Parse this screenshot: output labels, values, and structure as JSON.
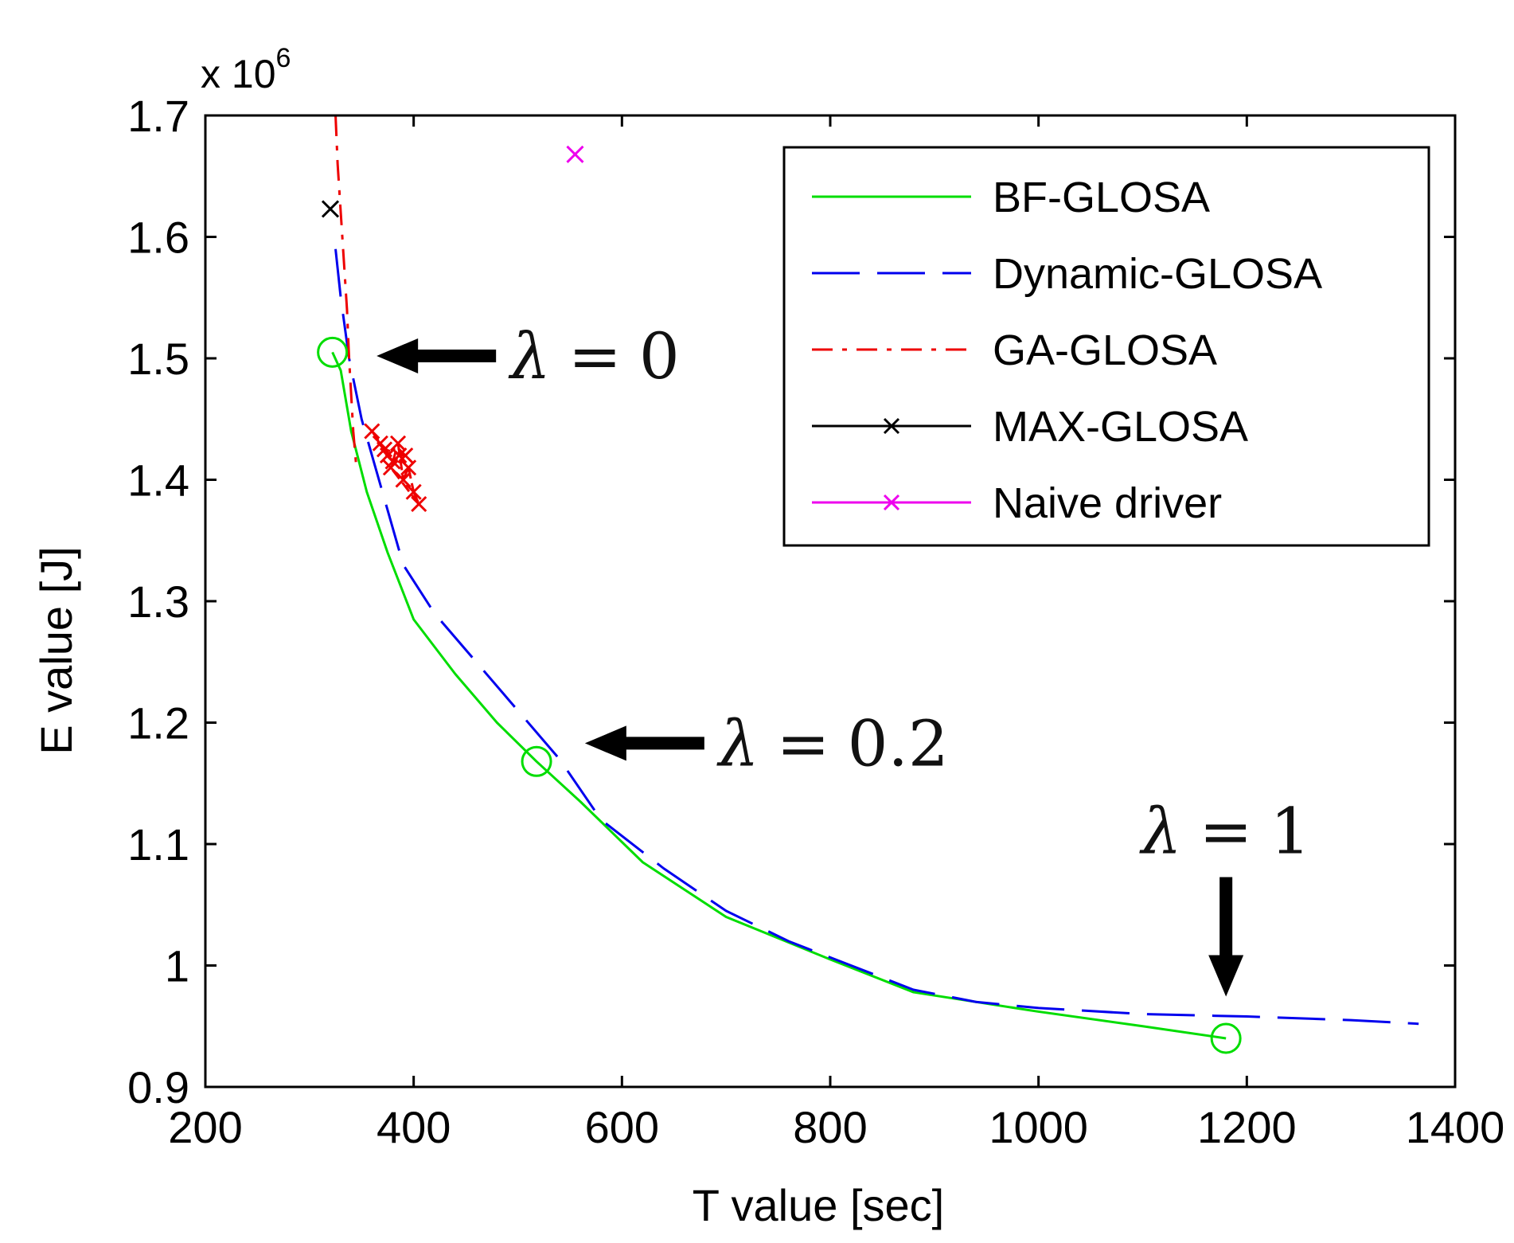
{
  "chart_data": {
    "type": "line",
    "title": "",
    "xlabel": "T value [sec]",
    "ylabel": "E value [J]",
    "y_multiplier": {
      "base": "x 10",
      "exponent": "6"
    },
    "xlim": [
      200,
      1400
    ],
    "ylim": [
      0.9,
      1.7
    ],
    "xticks": [
      200,
      400,
      600,
      800,
      1000,
      1200,
      1400
    ],
    "xtick_labels": [
      "200",
      "400",
      "600",
      "800",
      "1000",
      "1200",
      "1400"
    ],
    "yticks": [
      0.9,
      1.0,
      1.1,
      1.2,
      1.3,
      1.4,
      1.5,
      1.6,
      1.7
    ],
    "ytick_labels": [
      "0.9",
      "1",
      "1.1",
      "1.2",
      "1.3",
      "1.4",
      "1.5",
      "1.6",
      "1.7"
    ],
    "grid": false,
    "legend_position": "top-right",
    "series": [
      {
        "name": "BF-GLOSA",
        "color": "#00dd00",
        "style": "solid",
        "x": [
          322,
          330,
          340,
          355,
          375,
          400,
          440,
          480,
          518,
          560,
          620,
          700,
          800,
          880,
          1000,
          1100,
          1180
        ],
        "y": [
          1.505,
          1.49,
          1.44,
          1.39,
          1.34,
          1.285,
          1.24,
          1.2,
          1.168,
          1.135,
          1.085,
          1.04,
          1.005,
          0.978,
          0.962,
          0.95,
          0.94
        ]
      },
      {
        "name": "Dynamic-GLOSA",
        "color": "#0000ee",
        "style": "dashed",
        "x": [
          325,
          330,
          338,
          350,
          370,
          390,
          420,
          460,
          500,
          540,
          580,
          640,
          700,
          760,
          820,
          880,
          940,
          1000,
          1100,
          1200,
          1300,
          1365
        ],
        "y": [
          1.59,
          1.55,
          1.5,
          1.45,
          1.39,
          1.33,
          1.29,
          1.25,
          1.21,
          1.17,
          1.12,
          1.08,
          1.045,
          1.02,
          1.0,
          0.98,
          0.97,
          0.965,
          0.96,
          0.958,
          0.955,
          0.952
        ]
      },
      {
        "name": "GA-GLOSA",
        "color": "#ee0000",
        "style": "dashdot",
        "x": [
          325,
          327,
          330,
          333,
          336,
          338,
          340,
          342,
          345
        ],
        "y": [
          1.7,
          1.66,
          1.62,
          1.58,
          1.54,
          1.5,
          1.47,
          1.44,
          1.41
        ],
        "cluster": [
          [
            360,
            1.44
          ],
          [
            368,
            1.43
          ],
          [
            375,
            1.42
          ],
          [
            380,
            1.415
          ],
          [
            385,
            1.43
          ],
          [
            390,
            1.4
          ],
          [
            395,
            1.41
          ],
          [
            400,
            1.39
          ],
          [
            405,
            1.38
          ],
          [
            378,
            1.41
          ],
          [
            386,
            1.42
          ],
          [
            392,
            1.42
          ],
          [
            372,
            1.425
          ]
        ]
      },
      {
        "name": "MAX-GLOSA",
        "color": "#000000",
        "style": "solid-x",
        "points": [
          [
            320,
            1.623
          ]
        ]
      },
      {
        "name": "Naive driver",
        "color": "#ee00ee",
        "style": "solid-x",
        "points": [
          [
            555,
            1.668
          ]
        ]
      }
    ],
    "highlight_points": [
      [
        322,
        1.505
      ],
      [
        518,
        1.168
      ],
      [
        1180,
        0.94
      ]
    ],
    "annotations": [
      {
        "text": "λ = 0",
        "lambda": "λ",
        "eq": "=",
        "num": "0",
        "arrow": "left",
        "x": 340,
        "y": 1.502
      },
      {
        "text": "λ = 0.2",
        "lambda": "λ",
        "eq": "=",
        "num": "0.2",
        "arrow": "left",
        "x": 540,
        "y": 1.183
      },
      {
        "text": "λ = 1",
        "lambda": "λ",
        "eq": "=",
        "num": "1",
        "arrow": "down",
        "x": 1180,
        "y": 0.96
      }
    ]
  }
}
